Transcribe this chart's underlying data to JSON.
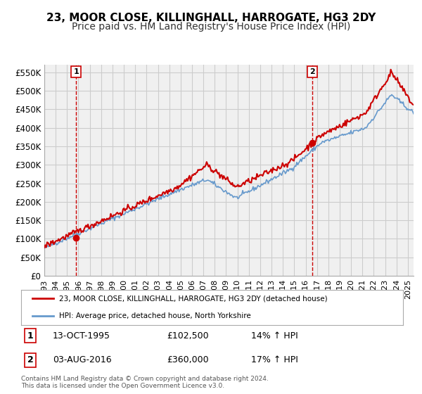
{
  "title": "23, MOOR CLOSE, KILLINGHALL, HARROGATE, HG3 2DY",
  "subtitle": "Price paid vs. HM Land Registry's House Price Index (HPI)",
  "ylim": [
    0,
    570000
  ],
  "yticks": [
    0,
    50000,
    100000,
    150000,
    200000,
    250000,
    300000,
    350000,
    400000,
    450000,
    500000,
    550000
  ],
  "ytick_labels": [
    "£0",
    "£50K",
    "£100K",
    "£150K",
    "£200K",
    "£250K",
    "£300K",
    "£350K",
    "£400K",
    "£450K",
    "£500K",
    "£550K"
  ],
  "xlim_start": 1993.0,
  "xlim_end": 2025.5,
  "xticks": [
    1993,
    1994,
    1995,
    1996,
    1997,
    1998,
    1999,
    2000,
    2001,
    2002,
    2003,
    2004,
    2005,
    2006,
    2007,
    2008,
    2009,
    2010,
    2011,
    2012,
    2013,
    2014,
    2015,
    2016,
    2017,
    2018,
    2019,
    2020,
    2021,
    2022,
    2023,
    2024,
    2025
  ],
  "house_color": "#cc0000",
  "hpi_color": "#6699cc",
  "grid_color": "#cccccc",
  "bg_color": "#f0f0f0",
  "sale1_x": 1995.79,
  "sale1_y": 102500,
  "sale1_label": "1",
  "sale1_date": "13-OCT-1995",
  "sale1_price": "£102,500",
  "sale1_hpi": "14% ↑ HPI",
  "sale2_x": 2016.58,
  "sale2_y": 360000,
  "sale2_label": "2",
  "sale2_date": "03-AUG-2016",
  "sale2_price": "£360,000",
  "sale2_hpi": "17% ↑ HPI",
  "legend_line1": "23, MOOR CLOSE, KILLINGHALL, HARROGATE, HG3 2DY (detached house)",
  "legend_line2": "HPI: Average price, detached house, North Yorkshire",
  "footer": "Contains HM Land Registry data © Crown copyright and database right 2024.\nThis data is licensed under the Open Government Licence v3.0.",
  "title_fontsize": 11,
  "subtitle_fontsize": 10,
  "tick_fontsize": 8.5,
  "vline_color": "#cc0000",
  "marker_color": "#cc0000"
}
